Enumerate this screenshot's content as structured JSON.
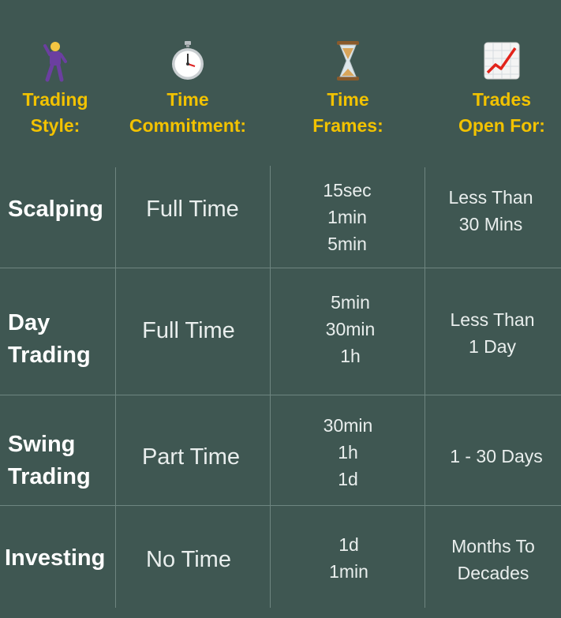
{
  "headers": [
    {
      "icon": "dancing-man-icon",
      "label": "Trading\nStyle:"
    },
    {
      "icon": "stopwatch-icon",
      "label": "Time\nCommitment:"
    },
    {
      "icon": "hourglass-icon",
      "label": "Time\nFrames:"
    },
    {
      "icon": "chart-increasing-icon",
      "label": "Trades\nOpen For:"
    }
  ],
  "rows": [
    {
      "style": "Scalping",
      "commitment": "Full  Time",
      "timeframes": "15sec\n1min\n5min",
      "open_for": "Less Than\n30 Mins"
    },
    {
      "style": "Day\nTrading",
      "commitment": "Full  Time",
      "timeframes": "5min\n30min\n1h",
      "open_for": "Less Than\n1 Day"
    },
    {
      "style": "Swing\nTrading",
      "commitment": "Part Time",
      "timeframes": "30min\n1h\n1d",
      "open_for": "1 - 30 Days"
    },
    {
      "style": "Investing",
      "commitment": "No Time",
      "timeframes": "1d\n1min",
      "open_for": "Months To\nDecades"
    }
  ],
  "colors": {
    "background": "#3f5752",
    "header_text": "#f2c200",
    "grid": "#6e8580"
  }
}
